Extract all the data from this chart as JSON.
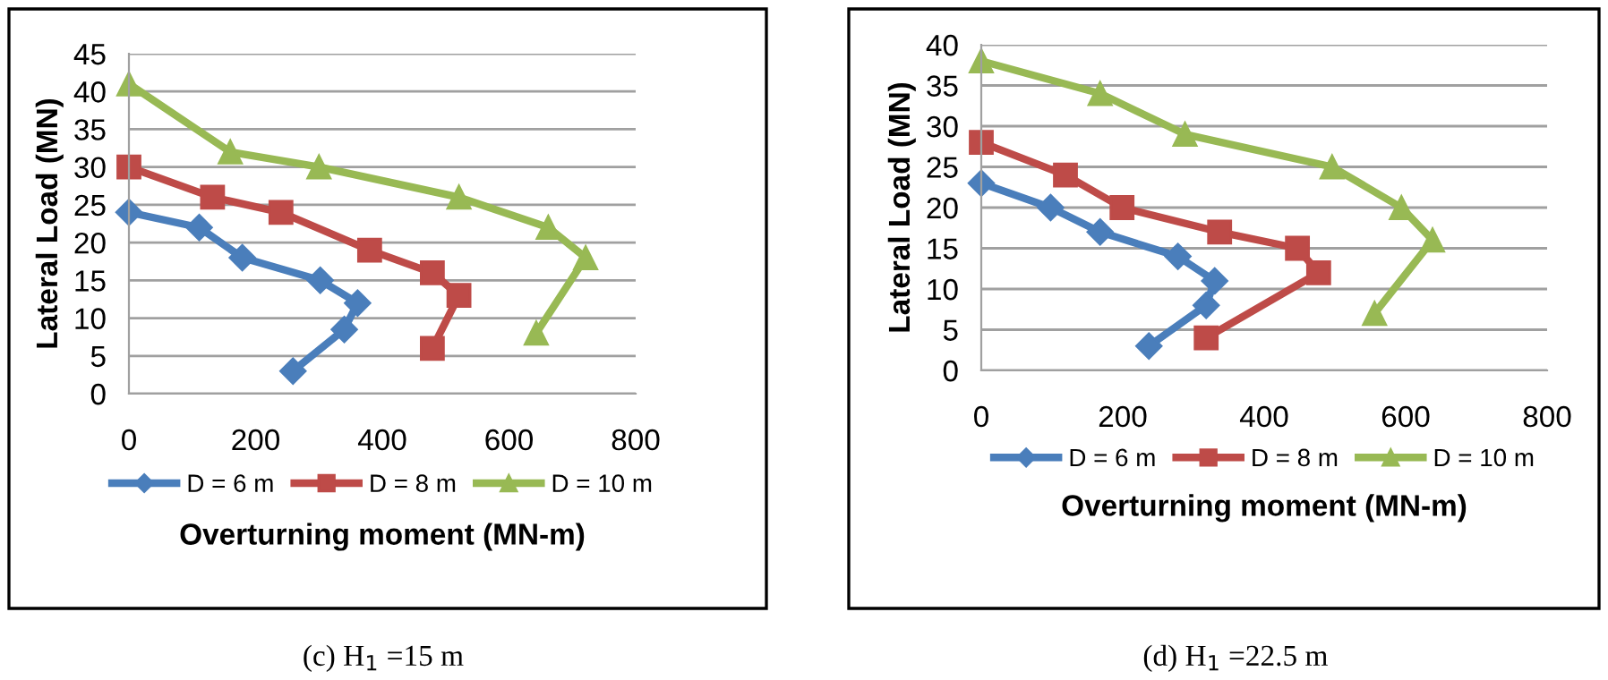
{
  "chart_data": [
    {
      "type": "line",
      "xlabel": "Overturning moment (MN-m)",
      "ylabel": "Lateral Load (MN)",
      "xlim": [
        0,
        800
      ],
      "xticks": [
        0,
        200,
        400,
        600,
        800
      ],
      "ylim": [
        0,
        45
      ],
      "yticks": [
        0,
        5,
        10,
        15,
        20,
        25,
        30,
        35,
        40,
        45
      ],
      "grid": "y",
      "legend": "bottom",
      "annotations": [
        "(c) H$_{1}$ =15 m"
      ],
      "series": [
        {
          "name": "D = 6 m",
          "color": "#4a7ebb",
          "marker": "diamond",
          "x": [
            0,
            111,
            179,
            302,
            361,
            340,
            259
          ],
          "values": [
            24,
            22,
            18,
            15,
            12,
            8.5,
            3
          ]
        },
        {
          "name": "D = 8 m",
          "color": "#be4b48",
          "marker": "square",
          "x": [
            0,
            132,
            240,
            380,
            479,
            521,
            479
          ],
          "values": [
            30,
            26,
            24,
            19,
            16,
            13,
            6
          ]
        },
        {
          "name": "D = 10 m",
          "color": "#98b954",
          "marker": "triangle",
          "x": [
            0,
            160,
            300,
            521,
            662,
            721,
            643
          ],
          "values": [
            41,
            32,
            30,
            26,
            22,
            18,
            8
          ]
        }
      ]
    },
    {
      "type": "line",
      "xlabel": "Overturning moment (MN-m)",
      "ylabel": "Lateral Load (MN)",
      "xlim": [
        0,
        800
      ],
      "xticks": [
        0,
        200,
        400,
        600,
        800
      ],
      "ylim": [
        0,
        40
      ],
      "yticks": [
        0,
        5,
        10,
        15,
        20,
        25,
        30,
        35,
        40
      ],
      "grid": "y",
      "legend": "bottom",
      "annotations": [
        "(d) H$_{1}$ =22.5 m"
      ],
      "series": [
        {
          "name": "D = 6 m",
          "color": "#4a7ebb",
          "marker": "diamond",
          "x": [
            0,
            98,
            168,
            278,
            330,
            318,
            237
          ],
          "values": [
            23,
            20,
            17,
            14,
            11,
            8,
            3
          ]
        },
        {
          "name": "D = 8 m",
          "color": "#be4b48",
          "marker": "square",
          "x": [
            0,
            119,
            199,
            337,
            447,
            477,
            318
          ],
          "values": [
            28,
            24,
            20,
            17,
            15,
            12,
            4
          ]
        },
        {
          "name": "D = 10 m",
          "color": "#98b954",
          "marker": "triangle",
          "x": [
            0,
            168,
            288,
            496,
            594,
            638,
            556
          ],
          "values": [
            38,
            34,
            29,
            25,
            20,
            16,
            7
          ]
        }
      ]
    }
  ]
}
